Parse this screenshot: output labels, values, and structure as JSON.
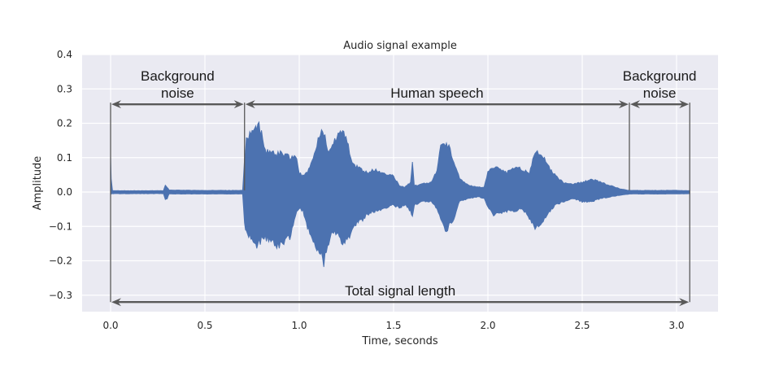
{
  "chart_data": {
    "type": "line",
    "title": "Audio signal example",
    "xlabel": "Time, seconds",
    "ylabel": "Amplitude",
    "xlim": [
      -0.15,
      3.23
    ],
    "ylim": [
      -0.35,
      0.4
    ],
    "xticks": [
      0.0,
      0.5,
      1.0,
      1.5,
      2.0,
      2.5,
      3.0
    ],
    "xtick_labels": [
      "0.0",
      "0.5",
      "1.0",
      "1.5",
      "2.0",
      "2.5",
      "3.0"
    ],
    "yticks": [
      0.4,
      0.3,
      0.2,
      0.1,
      0.0,
      -0.1,
      -0.2,
      -0.3
    ],
    "ytick_labels": [
      "0.4",
      "0.3",
      "0.2",
      "0.1",
      "0.0",
      "−0.1",
      "−0.2",
      "−0.3"
    ],
    "grid": true,
    "legend": null,
    "series": [
      {
        "name": "waveform envelope",
        "color": "#4c72b0",
        "t": [
          0.0,
          0.003,
          0.01,
          0.02,
          0.1,
          0.28,
          0.29,
          0.3,
          0.31,
          0.5,
          0.7,
          0.71,
          0.72,
          0.75,
          0.77,
          0.78,
          0.8,
          0.82,
          0.85,
          0.9,
          0.95,
          0.98,
          1.0,
          1.02,
          1.05,
          1.08,
          1.1,
          1.13,
          1.15,
          1.17,
          1.2,
          1.23,
          1.26,
          1.28,
          1.3,
          1.33,
          1.36,
          1.4,
          1.45,
          1.5,
          1.53,
          1.56,
          1.59,
          1.6,
          1.61,
          1.65,
          1.7,
          1.73,
          1.75,
          1.78,
          1.82,
          1.85,
          1.9,
          1.95,
          1.98,
          2.0,
          2.03,
          2.06,
          2.1,
          2.15,
          2.18,
          2.22,
          2.25,
          2.28,
          2.3,
          2.33,
          2.36,
          2.4,
          2.45,
          2.5,
          2.55,
          2.6,
          2.65,
          2.7,
          2.75,
          2.8,
          2.9,
          3.0,
          3.07
        ],
        "upper": [
          0.12,
          0.04,
          0.005,
          0.004,
          0.004,
          0.004,
          0.02,
          0.015,
          0.006,
          0.005,
          0.005,
          0.1,
          0.16,
          0.19,
          0.2,
          0.22,
          0.18,
          0.13,
          0.12,
          0.12,
          0.11,
          0.12,
          0.06,
          0.05,
          0.07,
          0.12,
          0.17,
          0.19,
          0.13,
          0.15,
          0.17,
          0.2,
          0.14,
          0.1,
          0.08,
          0.07,
          0.06,
          0.07,
          0.06,
          0.05,
          0.02,
          0.015,
          0.03,
          0.09,
          0.02,
          0.025,
          0.03,
          0.07,
          0.14,
          0.16,
          0.1,
          0.04,
          0.02,
          0.015,
          0.015,
          0.06,
          0.08,
          0.07,
          0.06,
          0.08,
          0.07,
          0.06,
          0.13,
          0.12,
          0.11,
          0.07,
          0.05,
          0.03,
          0.025,
          0.03,
          0.04,
          0.03,
          0.02,
          0.01,
          0.005,
          0.005,
          0.005,
          0.005,
          0.004
        ],
        "lower": [
          -0.005,
          -0.006,
          -0.005,
          -0.005,
          -0.005,
          -0.005,
          -0.025,
          -0.02,
          -0.006,
          -0.006,
          -0.006,
          -0.1,
          -0.13,
          -0.15,
          -0.17,
          -0.16,
          -0.15,
          -0.14,
          -0.16,
          -0.17,
          -0.14,
          -0.07,
          -0.05,
          -0.06,
          -0.12,
          -0.16,
          -0.18,
          -0.22,
          -0.17,
          -0.12,
          -0.13,
          -0.16,
          -0.15,
          -0.11,
          -0.1,
          -0.09,
          -0.07,
          -0.06,
          -0.05,
          -0.04,
          -0.05,
          -0.04,
          -0.06,
          -0.08,
          -0.04,
          -0.03,
          -0.03,
          -0.05,
          -0.09,
          -0.12,
          -0.08,
          -0.03,
          -0.02,
          -0.015,
          -0.02,
          -0.05,
          -0.07,
          -0.07,
          -0.06,
          -0.06,
          -0.05,
          -0.08,
          -0.11,
          -0.1,
          -0.08,
          -0.06,
          -0.04,
          -0.03,
          -0.02,
          -0.03,
          -0.03,
          -0.02,
          -0.015,
          -0.01,
          -0.006,
          -0.006,
          -0.006,
          -0.006,
          -0.005
        ]
      }
    ],
    "annotations": [
      {
        "text_line1": "Background",
        "text_line2": "noise",
        "x_start": 0.0,
        "x_end": 0.71,
        "y": 0.26
      },
      {
        "text_line1": "Human speech",
        "text_line2": "",
        "x_start": 0.71,
        "x_end": 2.75,
        "y": 0.26
      },
      {
        "text_line1": "Background",
        "text_line2": "noise",
        "x_start": 2.75,
        "x_end": 3.07,
        "y": 0.26
      },
      {
        "text_line1": "Total signal length",
        "text_line2": "",
        "x_start": 0.0,
        "x_end": 3.07,
        "y": -0.32
      }
    ],
    "colors": {
      "plot_bg": "#eaeaf2",
      "grid": "#ffffff",
      "line": "#4c72b0",
      "arrow": "#595959"
    }
  }
}
